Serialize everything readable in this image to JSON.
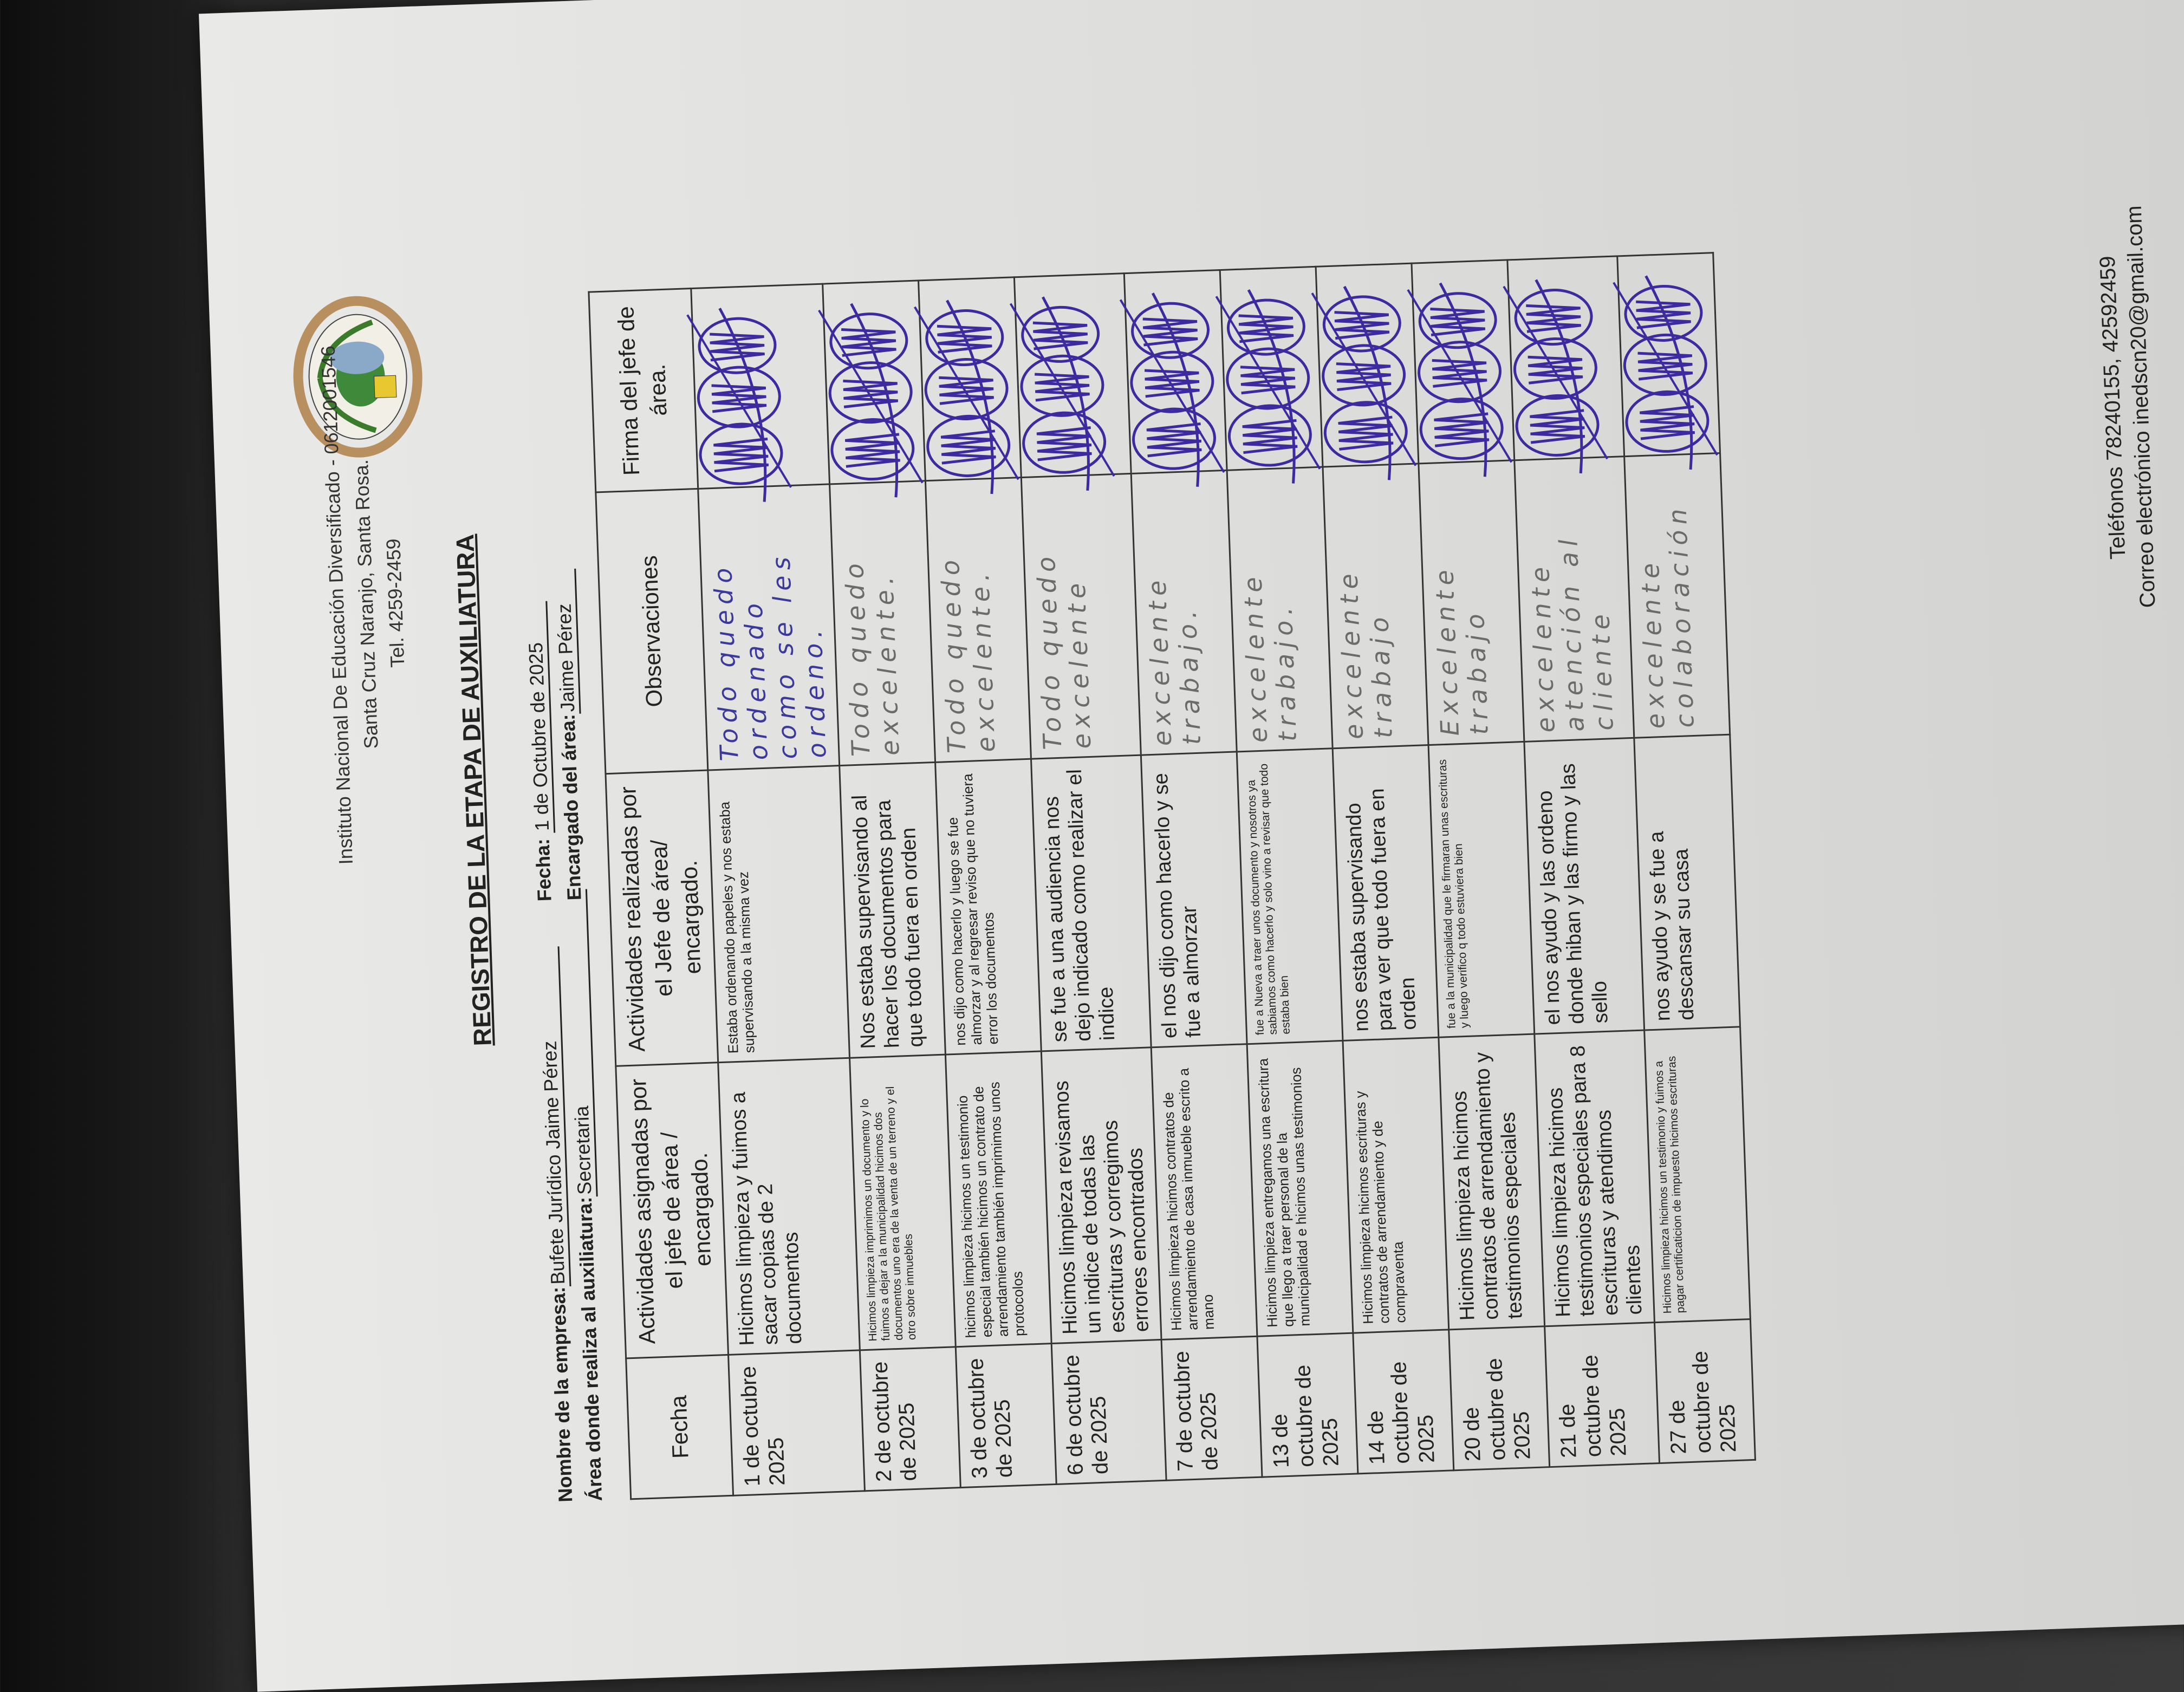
{
  "header": {
    "institute_line1": "Instituto  Nacional De Educación Diversificado - 0612001546",
    "institute_line2": "Santa Cruz Naranjo, Santa Rosa.",
    "institute_line3": "Tel. 4259-2459",
    "title": "REGISTRO DE LA ETAPA DE AUXILIATURA"
  },
  "meta": {
    "empresa_label": "Nombre de la empresa:",
    "empresa_value": "Bufete Jurídico Jaime Pérez",
    "fecha_label": "Fecha:",
    "fecha_value": "1 de Octubre de 2025",
    "area_label": "Área donde realiza al auxiliatura:",
    "area_value": "Secretaria",
    "encargado_label": "Encargado del área:",
    "encargado_value": "Jaime Pérez"
  },
  "table": {
    "headers": [
      "Fecha",
      "Actividades asignadas por el jefe de área / encargado.",
      "Actividades realizadas por el Jefe de área/ encargado.",
      "Observaciones",
      "Firma del jefe de área."
    ],
    "rows": [
      {
        "fecha": "1 de octubre 2025",
        "asignadas": "Hicimos limpieza y fuimos a sacar copias de 2 documentos",
        "realizadas": "Estaba ordenando papeles y nos estaba supervisando a la misma vez",
        "observaciones": "Todo quedo ordenado como se les ordeno."
      },
      {
        "fecha": "2 de octubre de 2025",
        "asignadas": "Hicimos limpieza imprimimos un documento y lo fuimos a dejar a la municipalidad hicimos dos documentos uno era de la venta de un terreno y el otro sobre inmuebles",
        "realizadas": "Nos estaba supervisando al hacer los documentos para que todo fuera en orden",
        "observaciones": "Todo quedo excelente."
      },
      {
        "fecha": "3 de octubre de 2025",
        "asignadas": "hicimos limpieza hicimos un testimonio especial también hicimos un contrato de arrendamiento también imprimimos unos protocolos",
        "realizadas": "nos dijo como hacerlo y luego se fue almorzar y al regresar reviso que no tuviera error los documentos",
        "observaciones": "Todo quedo excelente."
      },
      {
        "fecha": "6 de octubre de 2025",
        "asignadas": "Hicimos limpieza revisamos un indice de todas las escrituras y corregimos errores encontrados",
        "realizadas": "se fue a una audiencia nos dejo indicado como realizar el indice",
        "observaciones": "Todo quedo excelente"
      },
      {
        "fecha": "7 de octubre de 2025",
        "asignadas": "Hicimos limpieza hicimos contratos de arrendamiento de casa inmueble escrito a mano",
        "realizadas": "el nos dijo como hacerlo y se fue a almorzar",
        "observaciones": "excelente trabajo."
      },
      {
        "fecha": "13 de octubre de 2025",
        "asignadas": "Hicimos limpieza  entregamos una escritura que llego a traer personal de la municipalidad e hicimos unas testimonios",
        "realizadas": "fue a Nueva a traer unos documento y nosotros ya sabiamos como hacerlo y solo vino a revisar que todo estaba bien",
        "observaciones": "excelente trabajo."
      },
      {
        "fecha": "14 de octubre de 2025",
        "asignadas": "Hicimos limpieza hicimos escrituras y contratos de arrendamiento y de compraventa",
        "realizadas": "nos estaba supervisando para ver que todo fuera en orden",
        "observaciones": "excelente trabajo"
      },
      {
        "fecha": "20 de octubre de 2025",
        "asignadas": "Hicimos limpieza hicimos contratos de arrendamiento y testimonios especiales",
        "realizadas": "fue a la municipalidad que le firmaran unas escrituras y luego verifico q todo estuviera bien",
        "observaciones": "Excelente trabajo"
      },
      {
        "fecha": "21 de octubre de 2025",
        "asignadas": "Hicimos limpieza hicimos testimonios especiales para 8 escrituras y atendimos clientes",
        "realizadas": "el nos ayudo y las ordeno donde hiban y las firmo y las sello",
        "observaciones": "excelente atención al cliente"
      },
      {
        "fecha": "27 de octubre de 2025",
        "asignadas": "Hicimos limpieza hicimos un testimonio y fuimos a pagar certificaticion de impuesto hicimos escrituras",
        "realizadas": "nos ayudo y se fue a descansar  su casa",
        "observaciones": "excelente colaboración"
      }
    ]
  },
  "signature_ink_color": "#3d2a9e",
  "footer": {
    "phones": "Teléfonos 78240155, 42592459",
    "email": "Correo electrónico inedscn20@gmail.com"
  }
}
